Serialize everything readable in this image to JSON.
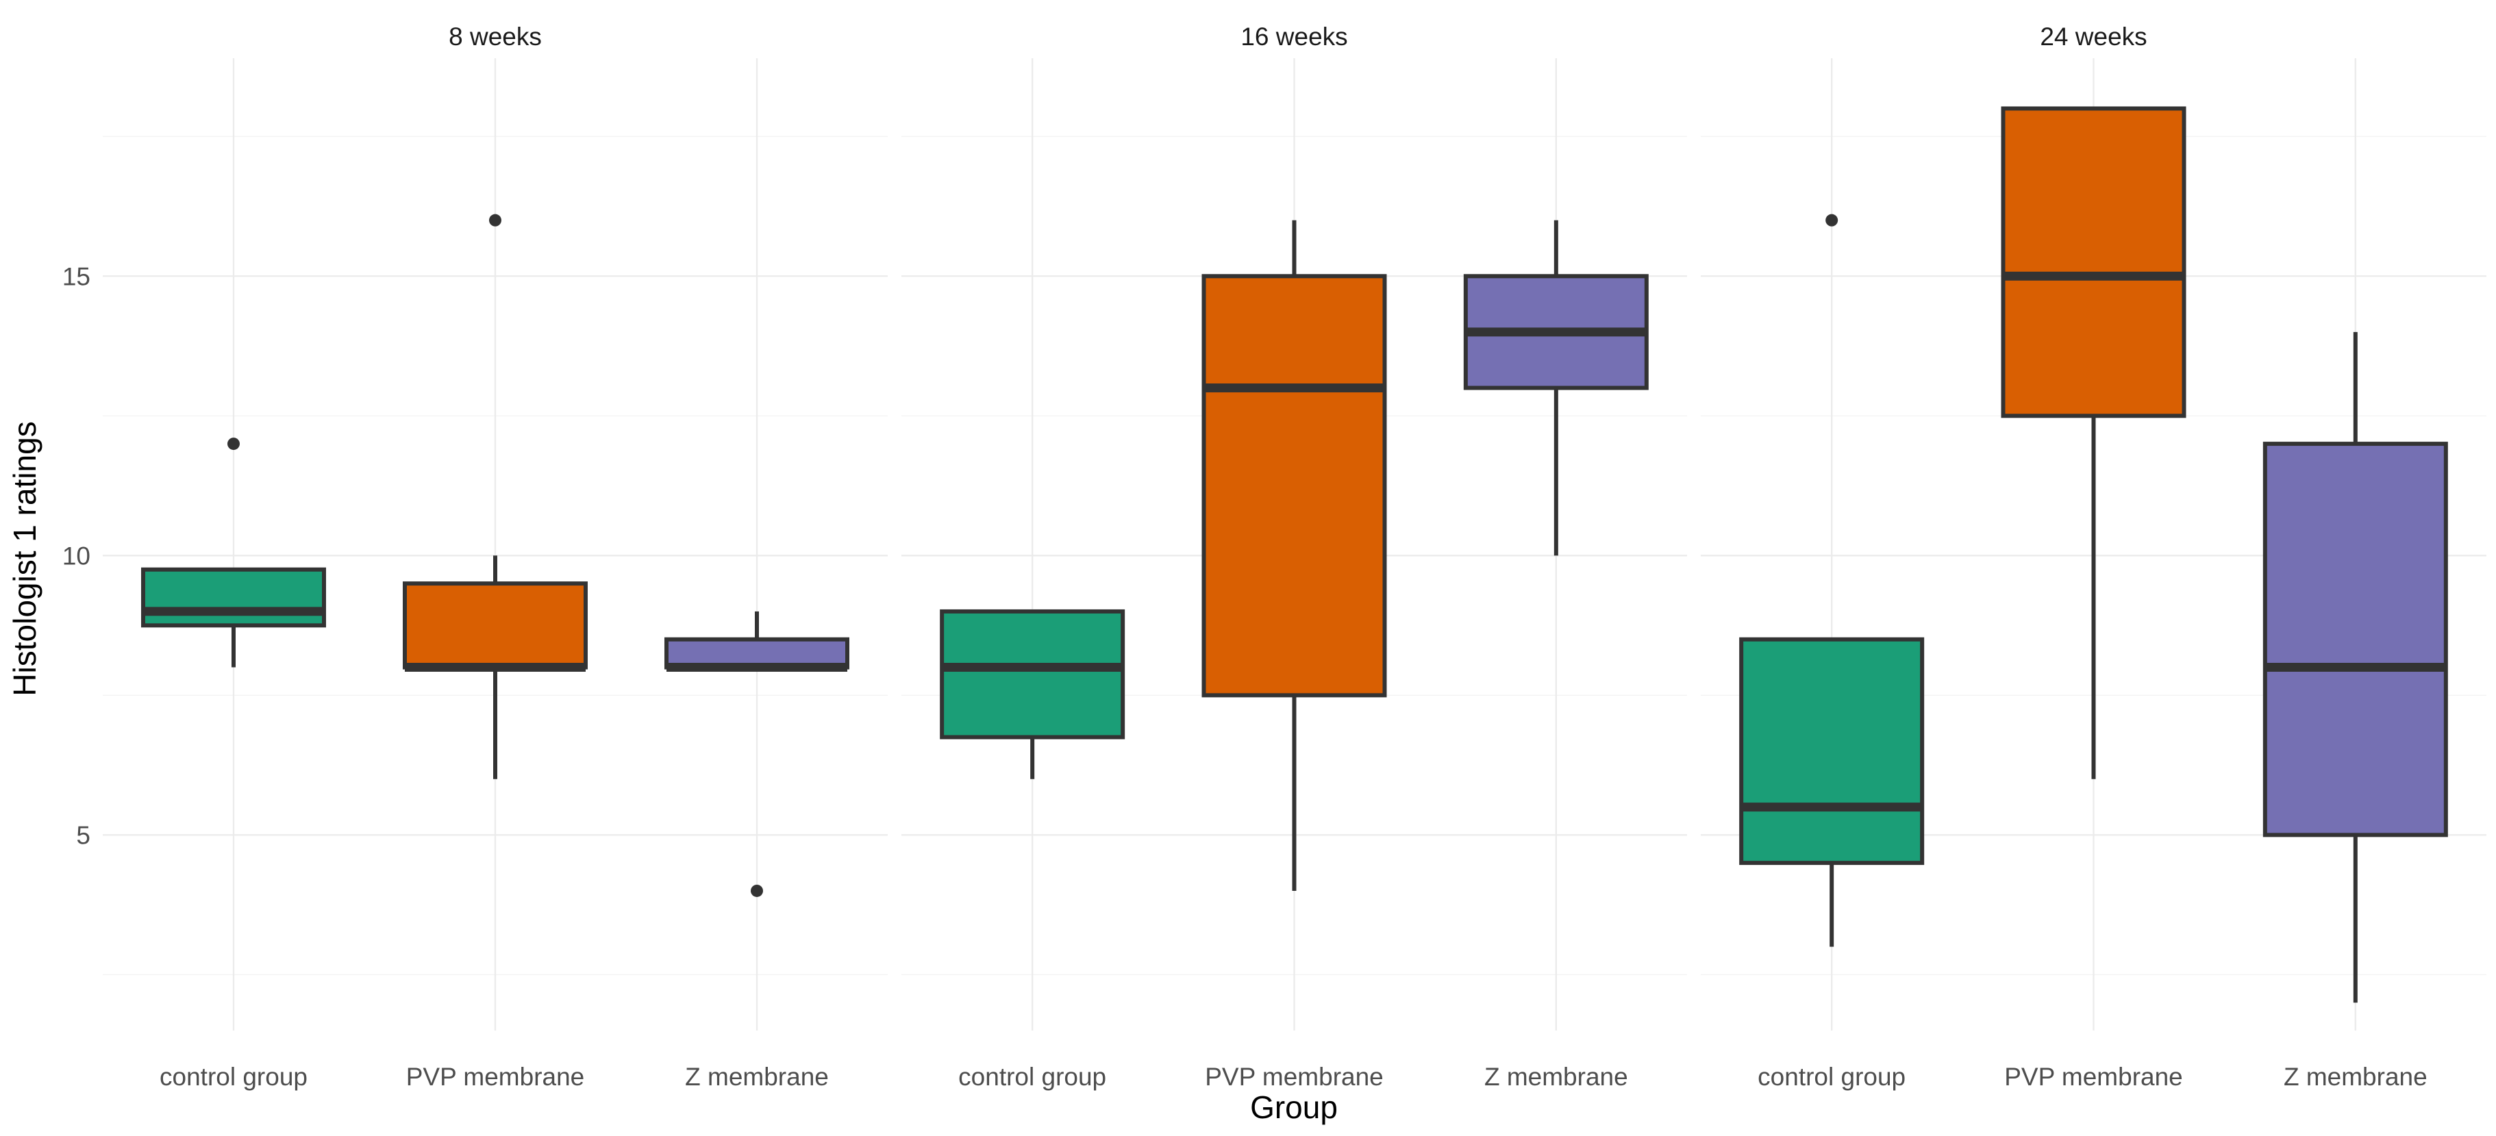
{
  "chart_data": {
    "type": "boxplot",
    "ylabel": "Histologist 1 ratings",
    "xlabel": "Group",
    "ylim": [
      1.5,
      18.9
    ],
    "y_ticks": [
      5,
      10,
      15
    ],
    "grid": true,
    "categories": [
      "control group",
      "PVP membrane",
      "Z membrane"
    ],
    "colors": [
      "#1b9e77",
      "#d95f02",
      "#7570b3"
    ],
    "facets": [
      {
        "title": "8 weeks",
        "boxes": [
          {
            "group": "control group",
            "q1": 8.75,
            "median": 9,
            "q3": 9.75,
            "whisker_low": 8,
            "whisker_high": 9.75,
            "outliers": [
              12
            ]
          },
          {
            "group": "PVP membrane",
            "q1": 8,
            "median": 8,
            "q3": 9.5,
            "whisker_low": 6,
            "whisker_high": 10,
            "outliers": [
              16
            ]
          },
          {
            "group": "Z membrane",
            "q1": 8,
            "median": 8,
            "q3": 8.5,
            "whisker_low": 8,
            "whisker_high": 9,
            "outliers": [
              4
            ]
          }
        ]
      },
      {
        "title": "16 weeks",
        "boxes": [
          {
            "group": "control group",
            "q1": 6.75,
            "median": 8,
            "q3": 9,
            "whisker_low": 6,
            "whisker_high": 9,
            "outliers": []
          },
          {
            "group": "PVP membrane",
            "q1": 7.5,
            "median": 13,
            "q3": 15,
            "whisker_low": 4,
            "whisker_high": 16,
            "outliers": []
          },
          {
            "group": "Z membrane",
            "q1": 13,
            "median": 14,
            "q3": 15,
            "whisker_low": 10,
            "whisker_high": 16,
            "outliers": []
          }
        ]
      },
      {
        "title": "24 weeks",
        "boxes": [
          {
            "group": "control group",
            "q1": 4.5,
            "median": 5.5,
            "q3": 8.5,
            "whisker_low": 3,
            "whisker_high": 8.5,
            "outliers": [
              16
            ]
          },
          {
            "group": "PVP membrane",
            "q1": 12.5,
            "median": 15,
            "q3": 18,
            "whisker_low": 6,
            "whisker_high": 18,
            "outliers": []
          },
          {
            "group": "Z membrane",
            "q1": 5,
            "median": 8,
            "q3": 12,
            "whisker_low": 2,
            "whisker_high": 14,
            "outliers": []
          }
        ]
      }
    ]
  }
}
